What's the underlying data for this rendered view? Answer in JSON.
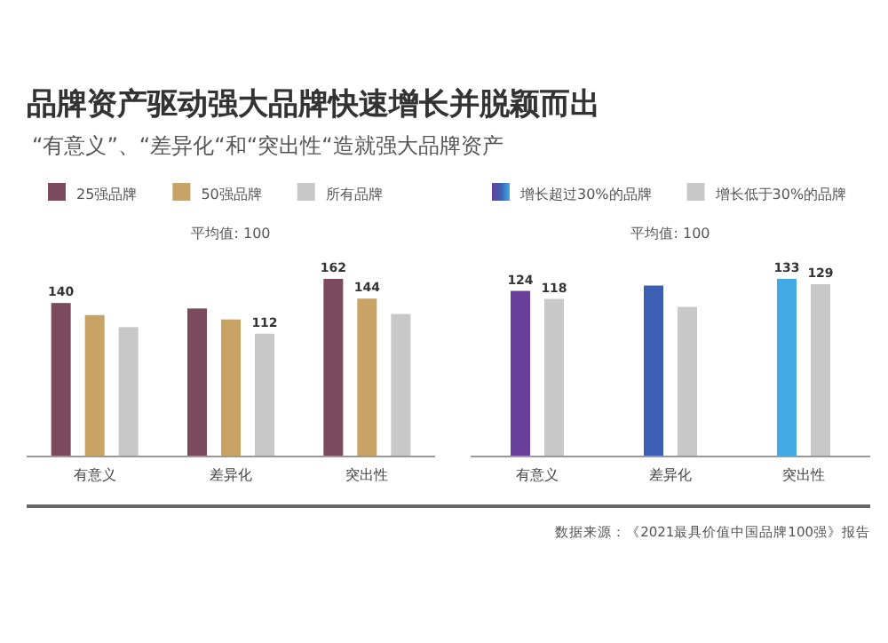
{
  "chart_data": [
    {
      "type": "bar",
      "title": "品牌资产驱动强大品牌快速增长并脱颖而出",
      "subtitle": "“有意义”、“差异化“和“突出性“造就强大品牌资产",
      "categories": [
        "有意义",
        "差异化",
        "突出性"
      ],
      "legend": "top",
      "annotations": [
        "平均值: 100"
      ],
      "series": [
        {
          "name": "25强品牌",
          "color": "#7b4a5c",
          "values": [
            140,
            135,
            162
          ],
          "value_labels": [
            "140",
            null,
            "162"
          ]
        },
        {
          "name": "50强品牌",
          "color": "#c9a265",
          "values": [
            129,
            125,
            144
          ],
          "value_labels": [
            null,
            null,
            "144"
          ]
        },
        {
          "name": "所有品牌",
          "color": "#c8c8c8",
          "values": [
            118,
            112,
            130
          ],
          "value_labels": [
            null,
            "112",
            null
          ]
        }
      ]
    },
    {
      "type": "bar",
      "categories": [
        "有意义",
        "差异化",
        "突出性"
      ],
      "legend": "top",
      "annotations": [
        "平均值: 100",
        "数据来源：《2021最具价值中国品牌100强》报告"
      ],
      "series": [
        {
          "name": "增长超过30%的品牌",
          "colors": [
            "#6a3f9c",
            "#3b5fb3",
            "#41a9e3"
          ],
          "values": [
            124,
            128,
            133
          ],
          "value_labels": [
            "124",
            null,
            "133"
          ]
        },
        {
          "name": "增长低于30%的品牌",
          "color": "#c8c8c8",
          "values": [
            118,
            112,
            129
          ],
          "value_labels": [
            "118",
            null,
            "129"
          ]
        }
      ]
    }
  ]
}
